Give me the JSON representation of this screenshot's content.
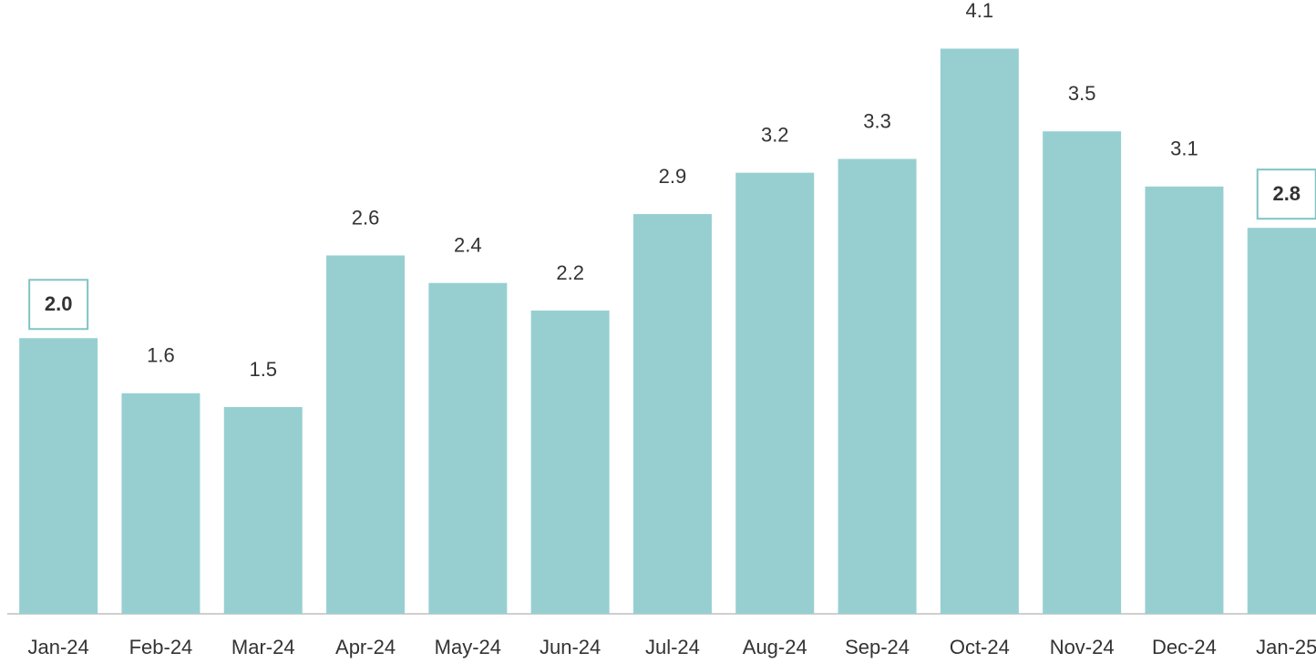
{
  "chart_data": {
    "type": "bar",
    "categories": [
      "Jan-24",
      "Feb-24",
      "Mar-24",
      "Apr-24",
      "May-24",
      "Jun-24",
      "Jul-24",
      "Aug-24",
      "Sep-24",
      "Oct-24",
      "Nov-24",
      "Dec-24",
      "Jan-25"
    ],
    "values": [
      2.0,
      1.6,
      1.5,
      2.6,
      2.4,
      2.2,
      2.9,
      3.2,
      3.3,
      4.1,
      3.5,
      3.1,
      2.8
    ],
    "value_labels": [
      "2.0",
      "1.6",
      "1.5",
      "2.6",
      "2.4",
      "2.2",
      "2.9",
      "3.2",
      "3.3",
      "4.1",
      "3.5",
      "3.1",
      "2.8"
    ],
    "highlighted": [
      true,
      false,
      false,
      false,
      false,
      false,
      false,
      false,
      false,
      false,
      false,
      false,
      true
    ],
    "color": "#97cfd1",
    "ylim": [
      0,
      4.4
    ],
    "grid": false
  }
}
